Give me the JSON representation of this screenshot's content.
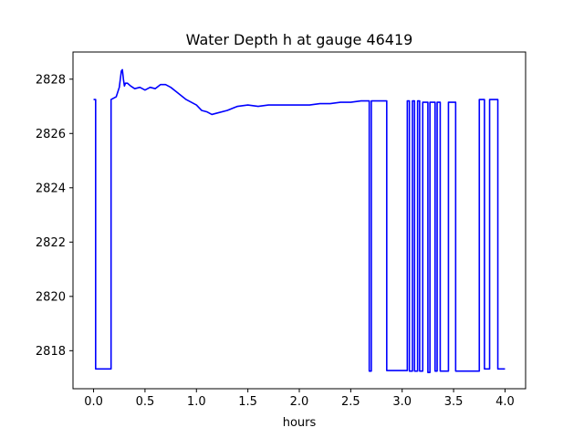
{
  "chart_data": {
    "type": "line",
    "title": "Water Depth h at gauge 46419",
    "xlabel": "hours",
    "ylabel": "",
    "xlim": [
      -0.2,
      4.2
    ],
    "ylim": [
      2816.6,
      2829.0
    ],
    "xticks": [
      0.0,
      0.5,
      1.0,
      1.5,
      2.0,
      2.5,
      3.0,
      3.5,
      4.0
    ],
    "xtick_labels": [
      "0.0",
      "0.5",
      "1.0",
      "1.5",
      "2.0",
      "2.5",
      "3.0",
      "3.5",
      "4.0"
    ],
    "yticks": [
      2818,
      2820,
      2822,
      2824,
      2826,
      2828
    ],
    "ytick_labels": [
      "2818",
      "2820",
      "2822",
      "2824",
      "2826",
      "2828"
    ],
    "grid": false,
    "series": [
      {
        "color": "#0000ff",
        "x": [
          0.0,
          0.02,
          0.02,
          0.17,
          0.17,
          0.22,
          0.25,
          0.27,
          0.28,
          0.29,
          0.3,
          0.31,
          0.33,
          0.36,
          0.4,
          0.45,
          0.5,
          0.55,
          0.6,
          0.65,
          0.7,
          0.75,
          0.8,
          0.85,
          0.9,
          0.95,
          1.0,
          1.05,
          1.1,
          1.15,
          1.2,
          1.3,
          1.4,
          1.5,
          1.6,
          1.7,
          1.8,
          1.9,
          2.0,
          2.1,
          2.2,
          2.3,
          2.4,
          2.5,
          2.6,
          2.68,
          2.68,
          2.7,
          2.7,
          2.85,
          2.85,
          3.05,
          3.05,
          3.07,
          3.07,
          3.1,
          3.1,
          3.12,
          3.12,
          3.15,
          3.15,
          3.17,
          3.17,
          3.2,
          3.2,
          3.25,
          3.25,
          3.27,
          3.27,
          3.32,
          3.32,
          3.34,
          3.34,
          3.37,
          3.37,
          3.45,
          3.45,
          3.52,
          3.52,
          3.75,
          3.75,
          3.8,
          3.8,
          3.85,
          3.85,
          3.93,
          3.93,
          4.0
        ],
        "y": [
          2827.25,
          2827.25,
          2817.33,
          2817.33,
          2827.25,
          2827.35,
          2827.7,
          2828.3,
          2828.35,
          2828.0,
          2827.75,
          2827.85,
          2827.85,
          2827.75,
          2827.65,
          2827.7,
          2827.6,
          2827.7,
          2827.65,
          2827.8,
          2827.8,
          2827.7,
          2827.55,
          2827.4,
          2827.25,
          2827.15,
          2827.05,
          2826.85,
          2826.8,
          2826.7,
          2826.75,
          2826.85,
          2827.0,
          2827.05,
          2827.0,
          2827.05,
          2827.05,
          2827.05,
          2827.05,
          2827.05,
          2827.1,
          2827.1,
          2827.15,
          2827.15,
          2827.2,
          2827.2,
          2817.25,
          2817.25,
          2827.2,
          2827.2,
          2817.27,
          2817.27,
          2827.2,
          2827.2,
          2817.25,
          2817.25,
          2827.2,
          2827.2,
          2817.25,
          2817.25,
          2827.2,
          2827.2,
          2817.25,
          2817.25,
          2827.15,
          2827.15,
          2817.2,
          2817.2,
          2827.15,
          2827.15,
          2817.25,
          2817.25,
          2827.15,
          2827.15,
          2817.25,
          2817.25,
          2827.15,
          2827.15,
          2817.25,
          2817.25,
          2827.25,
          2827.25,
          2817.33,
          2817.33,
          2827.25,
          2827.25,
          2817.33,
          2817.33
        ]
      }
    ]
  }
}
